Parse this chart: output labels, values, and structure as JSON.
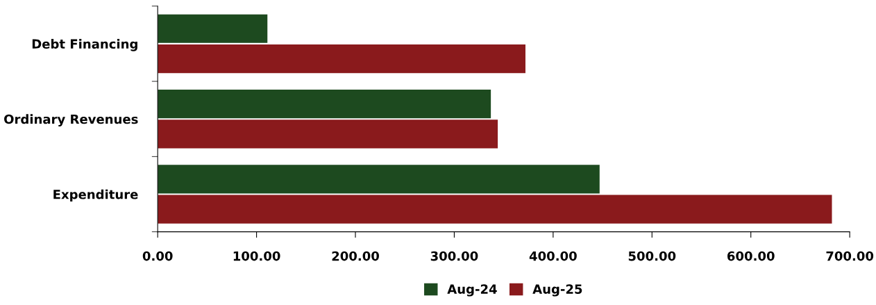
{
  "chart_data": {
    "type": "bar",
    "orientation": "horizontal",
    "categories": [
      "Debt Financing",
      "Ordinary Revenues",
      "Expenditure"
    ],
    "series": [
      {
        "name": "Aug-24",
        "color": "#1d4a1f",
        "values": [
          111,
          337,
          447
        ]
      },
      {
        "name": "Aug-25",
        "color": "#8a1a1c",
        "values": [
          372,
          344,
          682
        ]
      }
    ],
    "xlim": [
      0,
      700
    ],
    "xticks": [
      {
        "value": 0,
        "label": "0.00"
      },
      {
        "value": 100,
        "label": "100.00"
      },
      {
        "value": 200,
        "label": "200.00"
      },
      {
        "value": 300,
        "label": "300.00"
      },
      {
        "value": 400,
        "label": "400.00"
      },
      {
        "value": 500,
        "label": "500.00"
      },
      {
        "value": 600,
        "label": "600.00"
      },
      {
        "value": 700,
        "label": "700.00"
      }
    ],
    "grid": false,
    "legend": "bottom"
  }
}
